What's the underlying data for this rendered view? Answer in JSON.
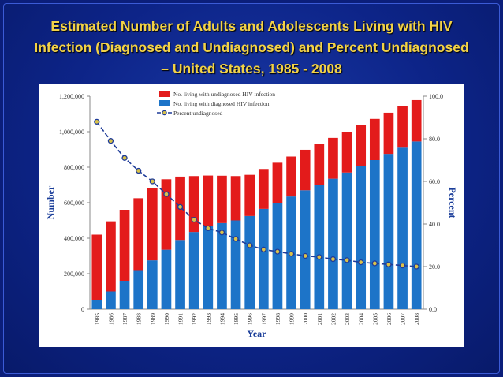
{
  "slide": {
    "title_lines": [
      "Estimated Number of Adults and Adolescents Living with HIV",
      "Infection (Diagnosed and Undiagnosed) and Percent Undiagnosed",
      "– United States, 1985 - 2008"
    ]
  },
  "colors": {
    "background": "#0b1e7a",
    "title": "#f2d247",
    "undiagnosed_bar": "#e31b1b",
    "diagnosed_bar": "#1d74c8",
    "line": "#1f3c99",
    "marker": "#d9c24a"
  },
  "chart_data": {
    "type": "bar",
    "stacked": true,
    "categories": [
      "1985",
      "1986",
      "1987",
      "1988",
      "1989",
      "1990",
      "1991",
      "1992",
      "1993",
      "1994",
      "1995",
      "1996",
      "1997",
      "1998",
      "1999",
      "2000",
      "2001",
      "2002",
      "2003",
      "2004",
      "2005",
      "2006",
      "2007",
      "2008"
    ],
    "series": [
      {
        "name": "No. living with diagnosed HIV infection",
        "values": [
          50000,
          100000,
          160000,
          220000,
          275000,
          335000,
          390000,
          435000,
          470000,
          485000,
          500000,
          525000,
          565000,
          600000,
          635000,
          670000,
          700000,
          735000,
          770000,
          805000,
          840000,
          875000,
          910000,
          945000
        ]
      },
      {
        "name": "No. living with undiagnosed HIV infection",
        "values": [
          370000,
          395000,
          400000,
          405000,
          405000,
          397000,
          357000,
          315000,
          283000,
          267000,
          250000,
          232000,
          225000,
          225000,
          225000,
          228000,
          232000,
          230000,
          230000,
          232000,
          232000,
          232000,
          233000,
          233000
        ]
      }
    ],
    "line_series": {
      "name": "Percent undiagnosed",
      "axis": "right",
      "values": [
        88,
        79,
        71,
        65,
        60,
        54,
        48,
        42,
        38,
        36,
        33,
        30,
        28,
        27,
        26,
        25,
        24.5,
        23.5,
        23,
        22,
        21.5,
        21,
        20.5,
        20
      ]
    },
    "xlabel": "Year",
    "ylabel": "Number",
    "y2label": "Percent",
    "ylim": [
      0,
      1200000
    ],
    "y2lim": [
      0,
      100
    ],
    "yticks": [
      "0",
      "200,000",
      "400,000",
      "600,000",
      "800,000",
      "1,000,000",
      "1,200,000"
    ],
    "y2ticks": [
      "0.0",
      "20.0",
      "40.0",
      "60.0",
      "80.0",
      "100.0"
    ],
    "legend": [
      "No. living with undiagnosed HIV infection",
      "No. living with diagnosed HIV infection",
      "Percent undiagnosed"
    ],
    "legend_position": "top-center",
    "grid": false
  }
}
